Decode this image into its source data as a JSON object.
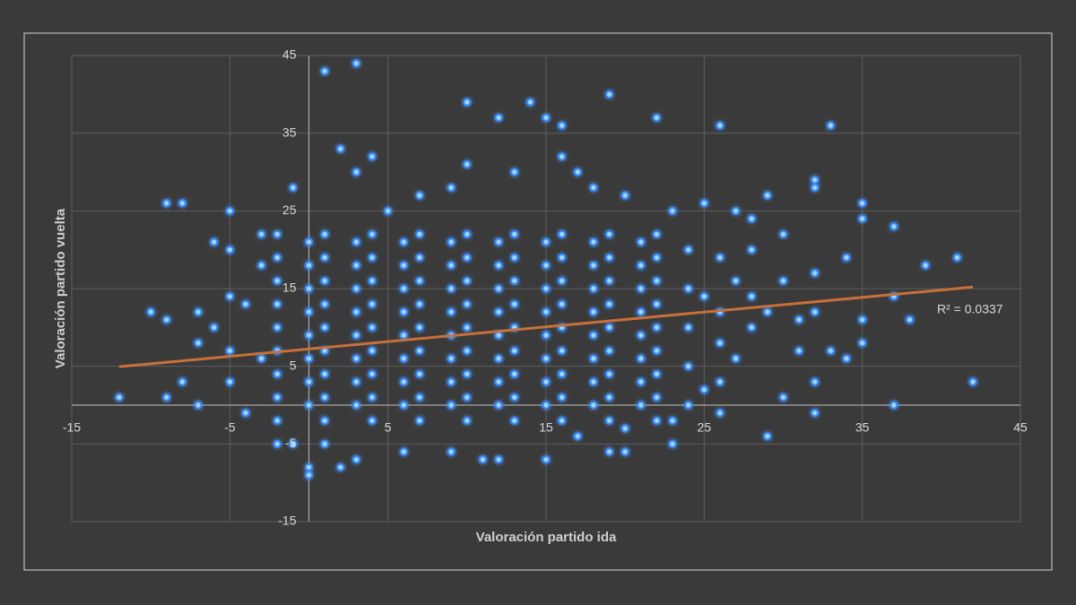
{
  "chart_data": {
    "type": "scatter",
    "x_label": "Valoración partido ida",
    "y_label": "Valoración partido vuelta",
    "annotation": "R² = 0.0337",
    "color": "#2f8bff",
    "trend_color": "#c8703a",
    "grid": true,
    "xlim": [
      -15,
      45
    ],
    "xticks": [
      -15,
      -5,
      5,
      15,
      25,
      35,
      45
    ],
    "ylim": [
      -15,
      45
    ],
    "yticks": [
      -15,
      -5,
      5,
      15,
      25,
      35,
      45
    ],
    "trendline": {
      "x": [
        -12,
        42
      ],
      "y": [
        4.95,
        15.2
      ]
    },
    "x": [
      -12,
      -10,
      -9,
      -9,
      -8,
      -9,
      -8,
      -7,
      -7,
      -7,
      -6,
      -6,
      -5,
      -5,
      -5,
      -5,
      -5,
      -4,
      -4,
      3,
      1,
      0,
      19,
      10,
      14,
      12,
      22,
      26,
      33,
      15,
      16,
      29,
      32,
      32,
      35,
      35,
      37,
      34,
      41,
      39,
      38,
      37,
      42,
      37,
      35,
      35,
      34,
      33,
      32,
      32,
      32,
      32,
      31,
      31,
      30,
      30,
      30,
      29,
      28,
      28,
      27,
      26,
      26,
      26,
      25,
      25,
      23,
      20,
      19,
      15,
      12,
      11,
      9,
      6,
      3,
      2,
      0,
      -1,
      -2,
      1,
      4,
      7,
      10,
      13,
      16,
      19,
      22,
      -2,
      1,
      4,
      7,
      10,
      13,
      16,
      19,
      22,
      -2,
      1,
      4,
      7,
      10,
      13,
      16,
      19,
      22,
      -2,
      1,
      4,
      7,
      10,
      13,
      16,
      19,
      22,
      -2,
      1,
      4,
      7,
      10,
      13,
      16,
      19,
      22,
      -2,
      1,
      4,
      7,
      10,
      13,
      16,
      19,
      22,
      -2,
      1,
      4,
      7,
      10,
      13,
      16,
      19,
      22,
      -2,
      1,
      4,
      7,
      10,
      13,
      16,
      19,
      22,
      -2,
      1,
      4,
      7,
      10,
      13,
      16,
      19,
      22,
      0,
      3,
      6,
      9,
      12,
      15,
      18,
      21,
      0,
      3,
      6,
      9,
      12,
      15,
      18,
      21,
      0,
      3,
      6,
      9,
      12,
      15,
      18,
      21,
      0,
      3,
      6,
      9,
      12,
      15,
      18,
      21,
      0,
      3,
      6,
      9,
      12,
      15,
      18,
      21,
      0,
      3,
      6,
      9,
      12,
      15,
      18,
      21,
      0,
      3,
      6,
      9,
      12,
      15,
      18,
      21,
      0,
      3,
      6,
      9,
      12,
      15,
      18,
      21,
      24,
      24,
      24,
      24,
      24,
      25,
      26,
      26,
      27,
      27,
      28,
      28,
      29,
      23,
      20,
      18,
      17,
      16,
      13,
      10,
      9,
      7,
      5,
      3,
      2,
      4,
      -1,
      -3,
      -3,
      -3,
      -2,
      1,
      23,
      20,
      17
    ],
    "values": [
      1,
      12,
      11,
      26,
      26,
      1,
      3,
      12,
      8,
      0,
      21,
      10,
      25,
      20,
      14,
      7,
      3,
      13,
      -1,
      44,
      43,
      -9,
      40,
      39,
      39,
      37,
      37,
      36,
      36,
      37,
      36,
      27,
      28,
      29,
      26,
      24,
      23,
      19,
      19,
      18,
      11,
      14,
      3,
      0,
      11,
      8,
      6,
      7,
      17,
      12,
      3,
      -1,
      11,
      7,
      22,
      16,
      1,
      -4,
      24,
      20,
      25,
      19,
      -1,
      3,
      26,
      14,
      -5,
      -6,
      -6,
      -7,
      -7,
      -7,
      -6,
      -6,
      -7,
      -8,
      -8,
      -5,
      -2,
      -2,
      -2,
      -2,
      -2,
      -2,
      -2,
      -2,
      -2,
      1,
      1,
      1,
      1,
      1,
      1,
      1,
      1,
      1,
      4,
      4,
      4,
      4,
      4,
      4,
      4,
      4,
      4,
      7,
      7,
      7,
      7,
      7,
      7,
      7,
      7,
      7,
      10,
      10,
      10,
      10,
      10,
      10,
      10,
      10,
      10,
      13,
      13,
      13,
      13,
      13,
      13,
      13,
      13,
      13,
      16,
      16,
      16,
      16,
      16,
      16,
      16,
      16,
      16,
      19,
      19,
      19,
      19,
      19,
      19,
      19,
      19,
      19,
      22,
      22,
      22,
      22,
      22,
      22,
      22,
      22,
      22,
      0,
      0,
      0,
      0,
      0,
      0,
      0,
      0,
      3,
      3,
      3,
      3,
      3,
      3,
      3,
      3,
      6,
      6,
      6,
      6,
      6,
      6,
      6,
      6,
      9,
      9,
      9,
      9,
      9,
      9,
      9,
      9,
      12,
      12,
      12,
      12,
      12,
      12,
      12,
      12,
      15,
      15,
      15,
      15,
      15,
      15,
      15,
      15,
      18,
      18,
      18,
      18,
      18,
      18,
      18,
      18,
      21,
      21,
      21,
      21,
      21,
      21,
      21,
      21,
      0,
      5,
      10,
      15,
      20,
      2,
      8,
      12,
      6,
      16,
      10,
      14,
      12,
      25,
      27,
      28,
      30,
      32,
      30,
      31,
      28,
      27,
      25,
      30,
      33,
      32,
      28,
      22,
      18,
      6,
      -5,
      -5,
      -2,
      -3,
      -4
    ]
  }
}
